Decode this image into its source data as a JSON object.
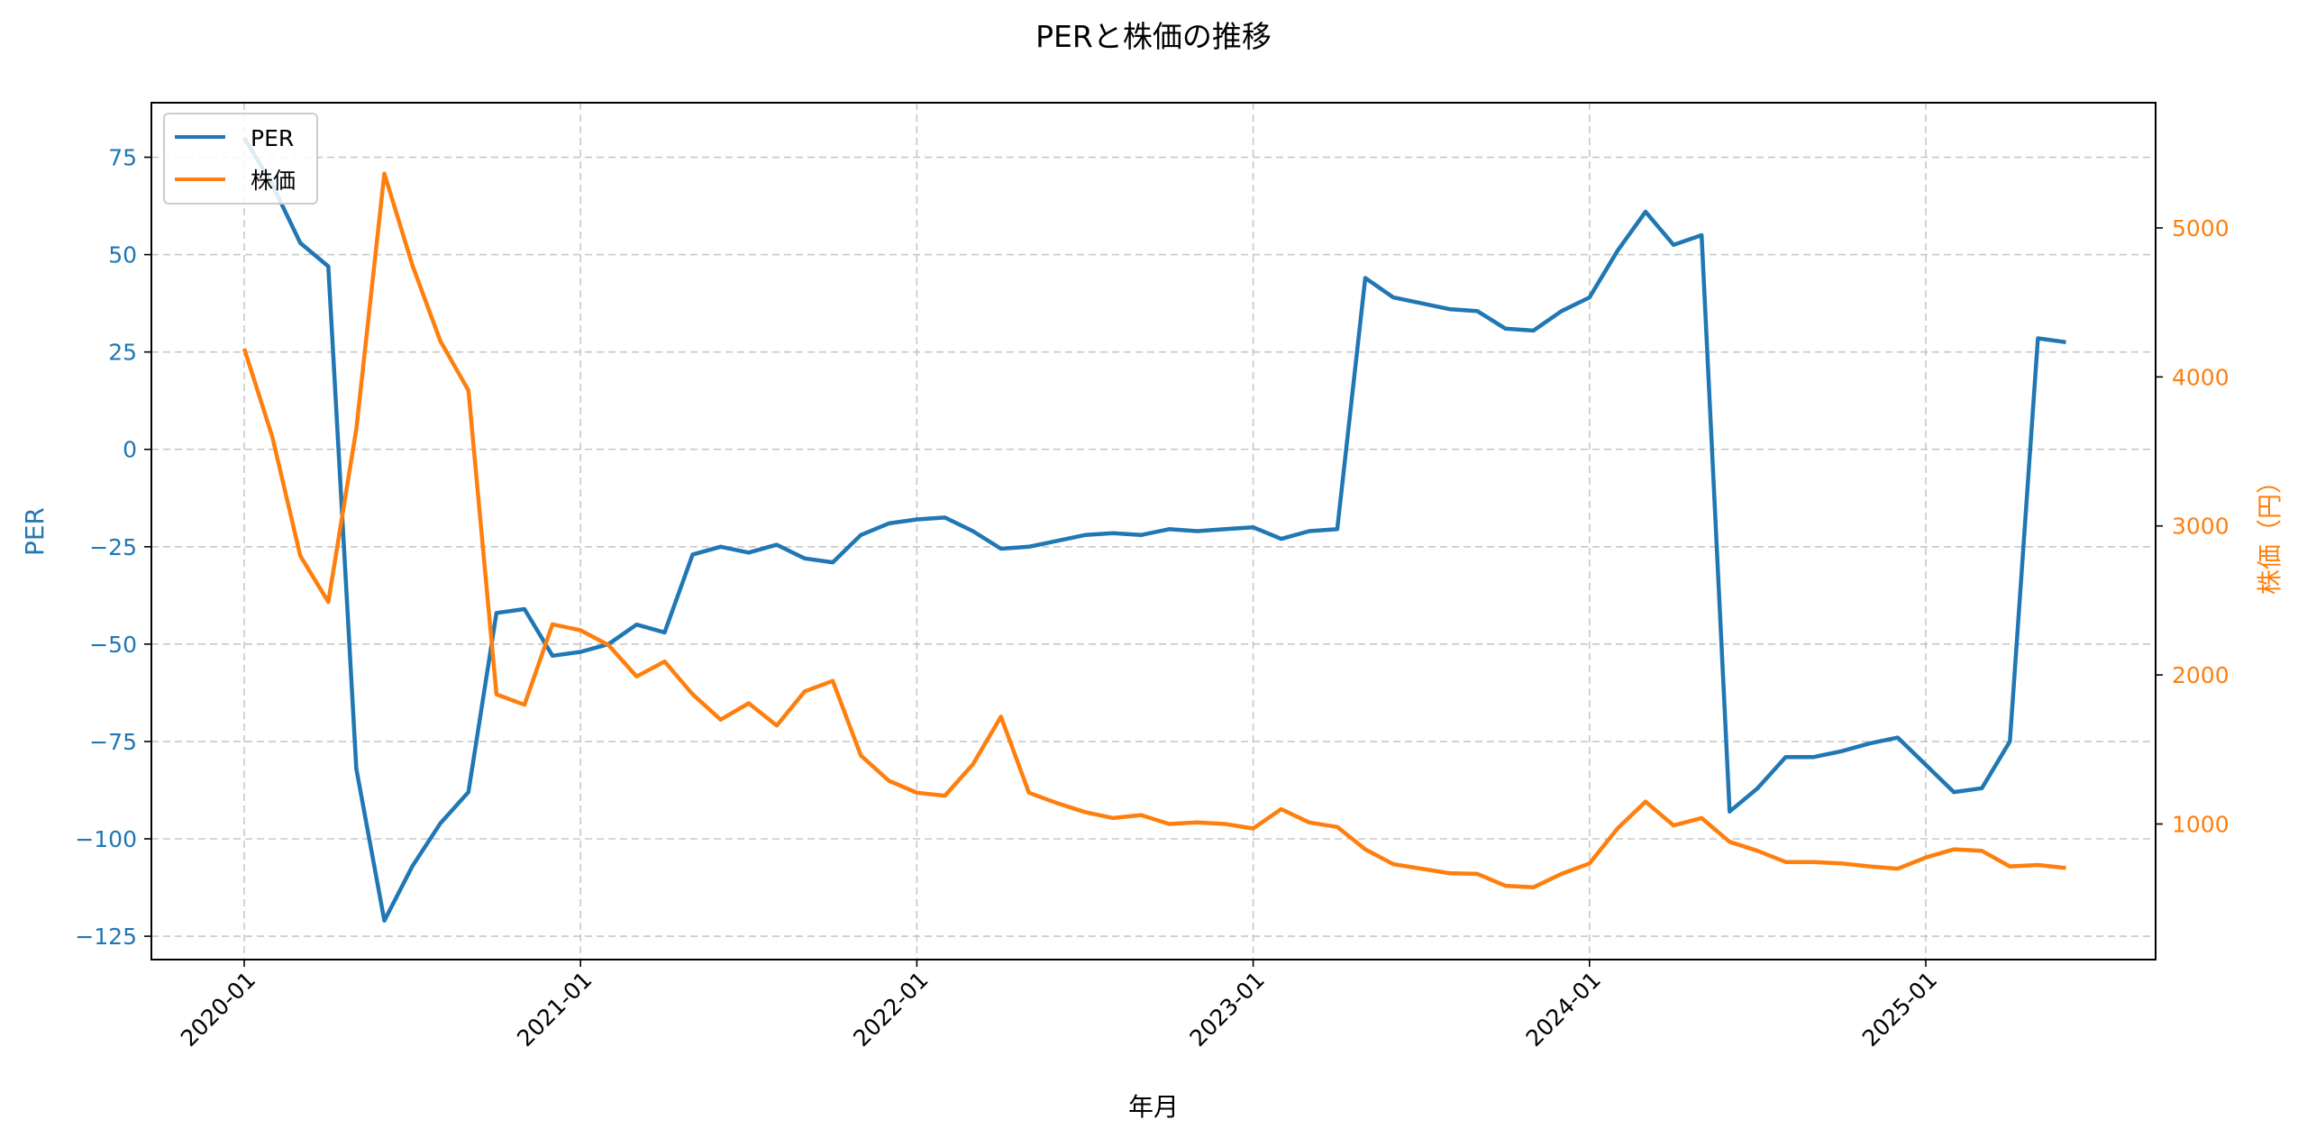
{
  "chart_data": {
    "type": "line",
    "title": "PERと株価の推移",
    "xlabel": "年月",
    "ylabel_left": "PER",
    "ylabel_right": "株価（円）",
    "x_start": "2020-01",
    "x_ticks": [
      "2020-01",
      "2021-01",
      "2022-01",
      "2023-01",
      "2024-01",
      "2025-01"
    ],
    "ylim_left": [
      -131,
      89
    ],
    "yticks_left": [
      75,
      50,
      25,
      0,
      -25,
      -50,
      -75,
      -100,
      -125
    ],
    "ytick_labels_left": [
      "75",
      "50",
      "25",
      "0",
      "−25",
      "−50",
      "−75",
      "−100",
      "−125"
    ],
    "ylim_right": [
      90,
      5840
    ],
    "yticks_right": [
      1000,
      2000,
      3000,
      4000,
      5000
    ],
    "ytick_labels_right": [
      "1000",
      "2000",
      "3000",
      "4000",
      "5000"
    ],
    "grid": true,
    "legend_placement": "top-left",
    "colors": {
      "left": "#1f77b4",
      "right": "#ff7f0e"
    },
    "series": [
      {
        "name": "PER",
        "axis": "left",
        "color": "#1f77b4",
        "values": [
          80,
          68,
          53,
          47,
          -82,
          -121,
          -107,
          -96,
          -88,
          -42,
          -41,
          -53,
          -52,
          -50,
          -45,
          -47,
          -27,
          -25,
          -26.5,
          -24.5,
          -28,
          -29,
          -22,
          -19,
          -18,
          -17.5,
          -21,
          -25.5,
          -25,
          -23.5,
          -22,
          -21.5,
          -22,
          -20.5,
          -21,
          -20.5,
          -20,
          -23,
          -21,
          -20.5,
          44,
          39,
          37.5,
          36,
          35.5,
          31,
          30.5,
          35.5,
          39,
          51,
          61,
          52.5,
          55,
          -93,
          -87,
          -79,
          -79,
          -77.5,
          -75.5,
          -74,
          -81,
          -88,
          -87,
          -75,
          28.5,
          27.5
        ]
      },
      {
        "name": "株価",
        "axis": "right",
        "color": "#ff7f0e",
        "values": [
          4190,
          3600,
          2800,
          2490,
          3650,
          5365,
          4750,
          4240,
          3910,
          1870,
          1800,
          2340,
          2300,
          2200,
          1990,
          2090,
          1870,
          1700,
          1810,
          1660,
          1890,
          1960,
          1460,
          1290,
          1210,
          1190,
          1400,
          1720,
          1210,
          1140,
          1080,
          1040,
          1060,
          1000,
          1010,
          1000,
          970,
          1100,
          1010,
          980,
          830,
          730,
          700,
          670,
          665,
          585,
          575,
          665,
          735,
          970,
          1150,
          990,
          1040,
          880,
          820,
          745,
          745,
          735,
          715,
          700,
          775,
          830,
          820,
          715,
          725,
          705
        ]
      }
    ]
  }
}
